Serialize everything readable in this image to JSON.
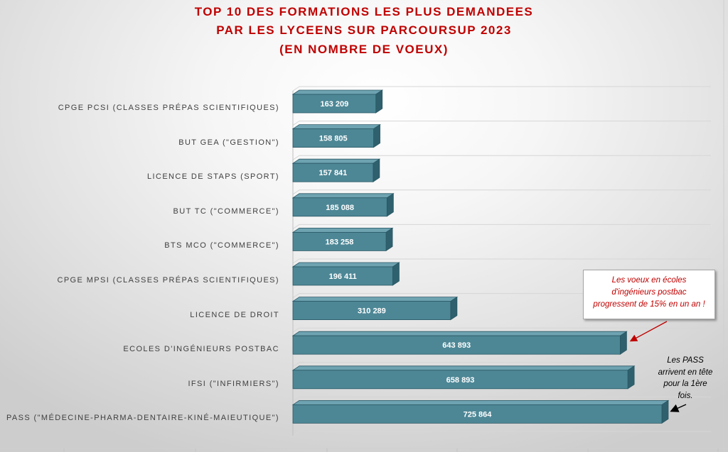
{
  "chart_data": {
    "type": "bar",
    "orientation": "horizontal",
    "style": "3d",
    "title": [
      "TOP 10 DES FORMATIONS LES PLUS DEMANDEES",
      "PAR LES LYCEENS SUR PARCOURSUP 2023",
      "(EN NOMBRE DE VOEUX)"
    ],
    "categories": [
      "CPGE PCSI (CLASSES PRÉPAS SCIENTIFIQUES)",
      "BUT GEA (\"GESTION\")",
      "LICENCE DE STAPS (SPORT)",
      "BUT TC (\"COMMERCE\")",
      "BTS MCO (\"COMMERCE\")",
      "CPGE MPSI (CLASSES PRÉPAS SCIENTIFIQUES)",
      "LICENCE DE DROIT",
      "ECOLES D'INGÉNIEURS POSTBAC",
      "IFSI (\"INFIRMIERS\")",
      "PASS (\"MÉDECINE-PHARMA-DENTAIRE-KINÉ-MAIEUTIQUE\")"
    ],
    "values": [
      163209,
      158805,
      157841,
      185088,
      183258,
      196411,
      310289,
      643893,
      658893,
      725864
    ],
    "value_labels": [
      "163 209",
      "158 805",
      "157 841",
      "185 088",
      "183 258",
      "196 411",
      "310 289",
      "643 893",
      "658 893",
      "725 864"
    ],
    "xlim": [
      0,
      800000
    ],
    "grid": true,
    "legend": "none"
  },
  "annotations": [
    {
      "lines": [
        "Les voeux en écoles",
        "d'ingénieurs postbac",
        "progressent de 15% en un an !"
      ],
      "color": "#c00000"
    },
    {
      "lines": [
        "Les PASS",
        "arrivent en tête",
        "pour la 1ère",
        "fois."
      ],
      "color": "#000000"
    }
  ],
  "colors": {
    "title": "#c00000",
    "bar_front": "#4d8796",
    "bar_top": "#6ea3b1",
    "bar_side": "#2f606d",
    "bar_edge": "#2a5764",
    "bar_value_text": "#ffffff",
    "category_text": "#404040",
    "gridline": "#d6d6d6"
  }
}
